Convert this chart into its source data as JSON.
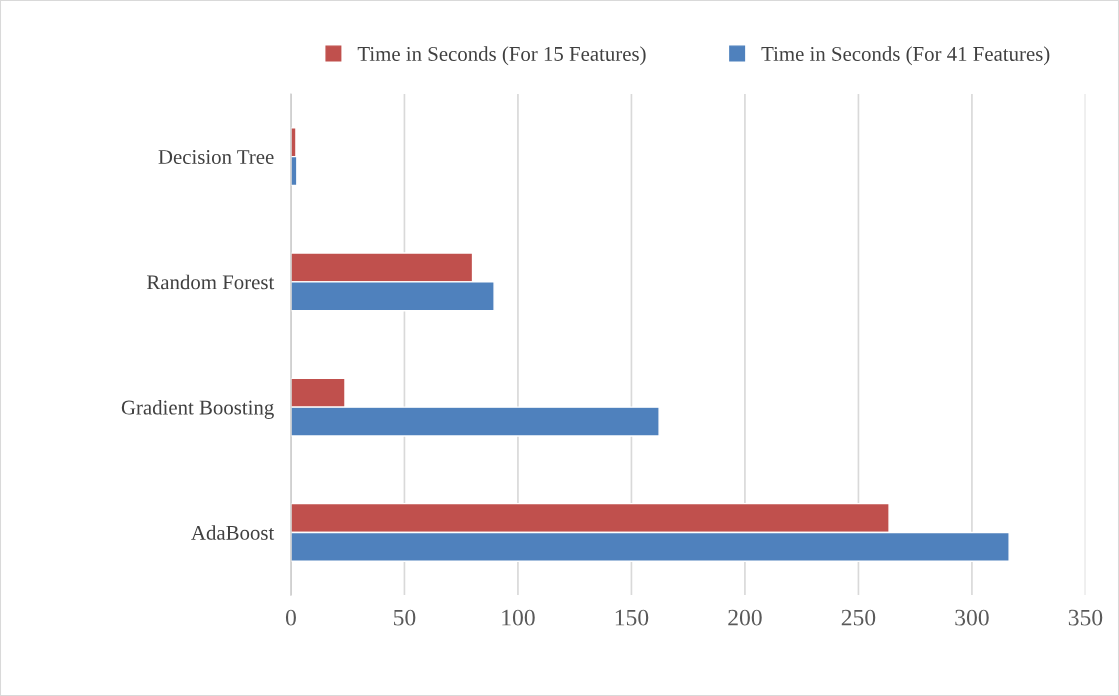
{
  "chart_data": {
    "type": "bar",
    "orientation": "horizontal",
    "categories": [
      "Decision Tree",
      "Random Forest",
      "Gradient Boosting",
      "AdaBoost"
    ],
    "series": [
      {
        "name": "Time in Seconds (For 15 Features)",
        "color": "#c0504d",
        "values": [
          2.2,
          80,
          23.8,
          263.5
        ]
      },
      {
        "name": "Time in Seconds (For 41 Features)",
        "color": "#4f81bd",
        "values": [
          2.6,
          89.5,
          162.2,
          316.4
        ]
      }
    ],
    "xlim": [
      0,
      350
    ],
    "xticks": [
      0,
      50,
      100,
      150,
      200,
      250,
      300,
      350
    ],
    "grid": "x",
    "legend": "top"
  }
}
